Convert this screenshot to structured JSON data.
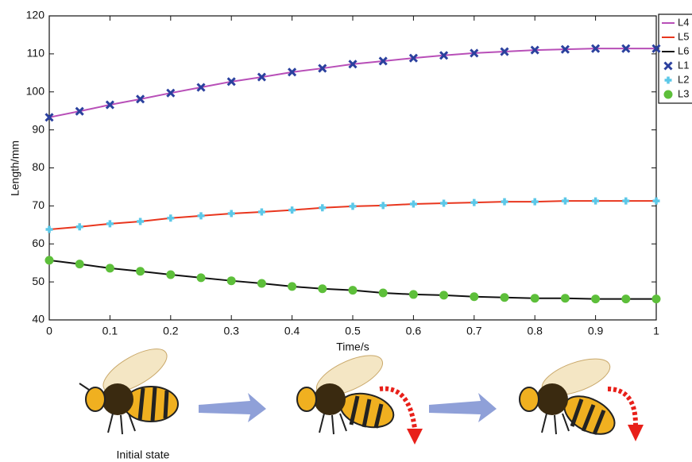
{
  "chart_data": {
    "type": "line",
    "xlabel": "Time/s",
    "ylabel": "Length/mm",
    "x": [
      0,
      0.05,
      0.1,
      0.15,
      0.2,
      0.25,
      0.3,
      0.35,
      0.4,
      0.45,
      0.5,
      0.55,
      0.6,
      0.65,
      0.7,
      0.75,
      0.8,
      0.85,
      0.9,
      0.95,
      1
    ],
    "xlim": [
      0,
      1
    ],
    "xticks": [
      0,
      0.1,
      0.2,
      0.3,
      0.4,
      0.5,
      0.6,
      0.7,
      0.8,
      0.9,
      1
    ],
    "ylim": [
      40,
      120
    ],
    "yticks": [
      40,
      50,
      60,
      70,
      80,
      90,
      100,
      110,
      120
    ],
    "legend": "outside-top-right",
    "series": [
      {
        "name": "L4",
        "color": "#b84fb8",
        "style": "line",
        "values": [
          93.3,
          94.9,
          96.6,
          98.1,
          99.7,
          101.2,
          102.7,
          103.9,
          105.2,
          106.2,
          107.3,
          108.1,
          108.9,
          109.6,
          110.2,
          110.6,
          111.0,
          111.2,
          111.4,
          111.4,
          111.4
        ]
      },
      {
        "name": "L5",
        "color": "#e8361e",
        "style": "line",
        "values": [
          63.8,
          64.5,
          65.3,
          65.9,
          66.8,
          67.4,
          68.0,
          68.4,
          68.9,
          69.5,
          69.9,
          70.1,
          70.5,
          70.7,
          70.9,
          71.1,
          71.1,
          71.3,
          71.3,
          71.3,
          71.3
        ]
      },
      {
        "name": "L6",
        "color": "#111111",
        "style": "line",
        "values": [
          55.7,
          54.7,
          53.6,
          52.8,
          51.9,
          51.1,
          50.3,
          49.6,
          48.8,
          48.2,
          47.8,
          47.1,
          46.7,
          46.5,
          46.1,
          45.9,
          45.7,
          45.7,
          45.5,
          45.5,
          45.5
        ]
      },
      {
        "name": "L1",
        "color": "#2b409e",
        "style": "marker",
        "marker": "x",
        "values": [
          93.3,
          94.9,
          96.6,
          98.1,
          99.7,
          101.2,
          102.7,
          103.9,
          105.2,
          106.2,
          107.3,
          108.1,
          108.9,
          109.6,
          110.2,
          110.6,
          111.0,
          111.2,
          111.4,
          111.4,
          111.4
        ]
      },
      {
        "name": "L2",
        "color": "#5cc8e8",
        "style": "marker",
        "marker": "plus",
        "values": [
          63.8,
          64.5,
          65.3,
          65.9,
          66.8,
          67.4,
          68.0,
          68.4,
          68.9,
          69.5,
          69.9,
          70.1,
          70.5,
          70.7,
          70.9,
          71.1,
          71.1,
          71.3,
          71.3,
          71.3,
          71.3
        ]
      },
      {
        "name": "L3",
        "color": "#5dbf3a",
        "style": "marker",
        "marker": "circle",
        "values": [
          55.7,
          54.7,
          53.6,
          52.8,
          51.9,
          51.1,
          50.3,
          49.6,
          48.8,
          48.2,
          47.8,
          47.1,
          46.7,
          46.5,
          46.1,
          45.9,
          45.7,
          45.7,
          45.5,
          45.5,
          45.5
        ]
      }
    ]
  },
  "illustration": {
    "caption": "Initial state"
  }
}
